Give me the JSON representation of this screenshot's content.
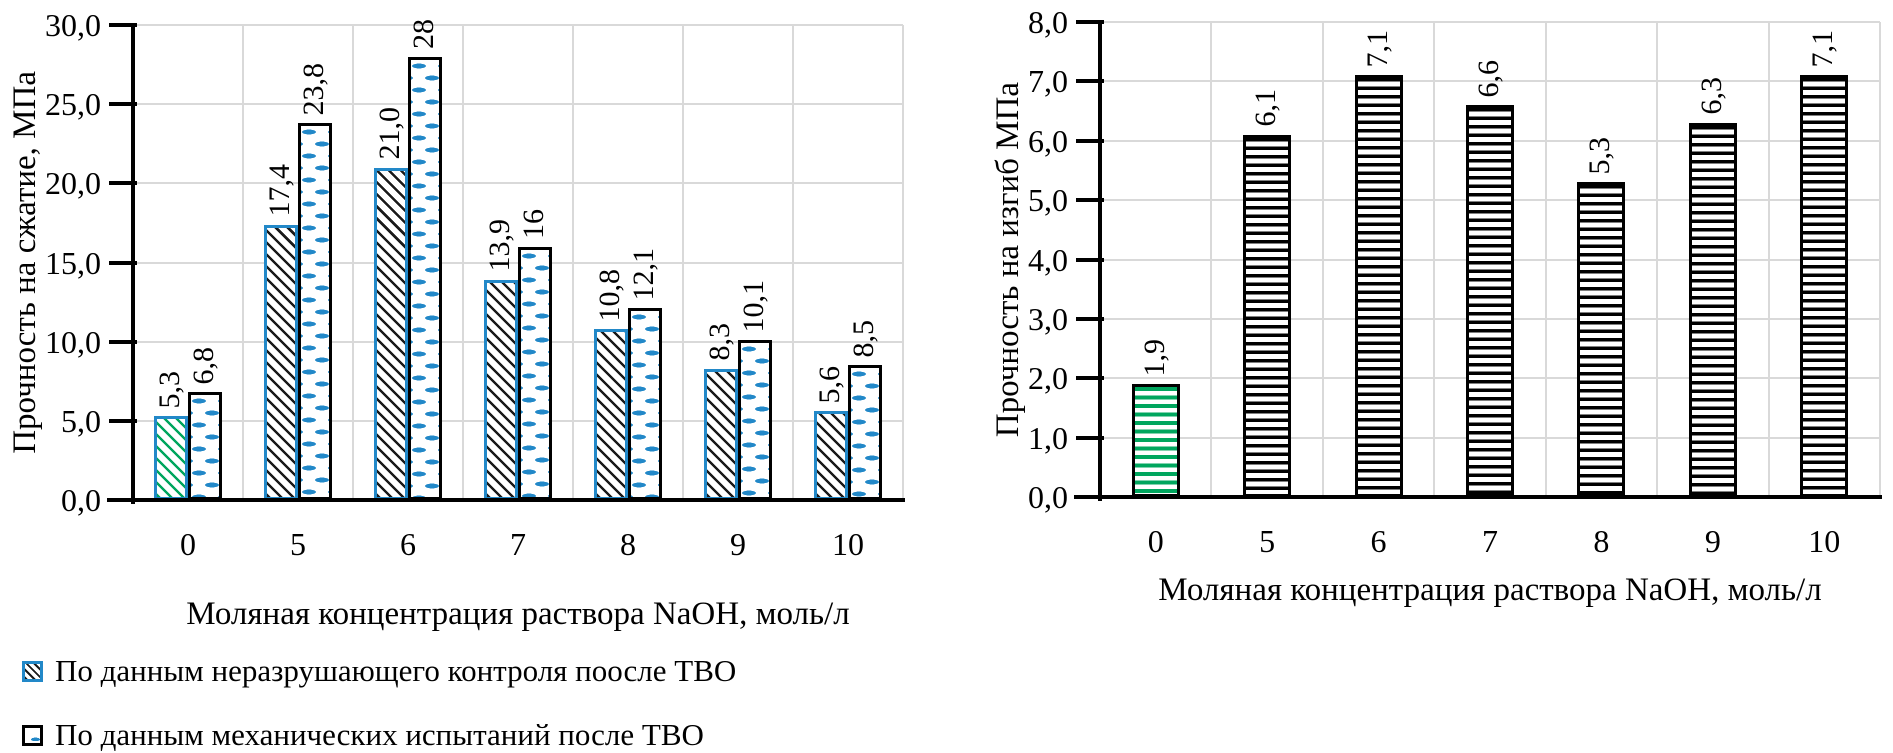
{
  "colors": {
    "accent_blue": "#2288C8",
    "accent_green": "#00A65E",
    "grid_gray": "#D9D9D9",
    "axis_black": "#000000"
  },
  "legend": {
    "items": [
      {
        "label": "По данным неразрушающего контроля поосле ТВО",
        "swatch": "black-hatch-blue-border"
      },
      {
        "label": "По данным механических испытаний после ТВО",
        "swatch": "blue-dash-black-border"
      }
    ]
  },
  "chart_data": [
    {
      "type": "bar",
      "title": "",
      "categories": [
        "0",
        "5",
        "6",
        "7",
        "8",
        "9",
        "10"
      ],
      "series": [
        {
          "name": "По данным неразрушающего контроля поосле ТВО",
          "values": [
            5.3,
            17.4,
            21.0,
            13.9,
            10.8,
            8.3,
            5.6
          ],
          "value_labels": [
            "5,3",
            "17,4",
            "21,0",
            "13,9",
            "10,8",
            "8,3",
            "5,6"
          ],
          "patterns": [
            "hatch-green",
            "hatch-black",
            "hatch-black",
            "hatch-black",
            "hatch-black",
            "hatch-black",
            "hatch-black"
          ],
          "border": "blue"
        },
        {
          "name": "По данным механических испытаний после ТВО",
          "values": [
            6.8,
            23.8,
            28,
            16,
            12.1,
            10.1,
            8.5
          ],
          "value_labels": [
            "6,8",
            "23,8",
            "28",
            "16",
            "12,1",
            "10,1",
            "8,5"
          ],
          "patterns": [
            "blue-dash",
            "blue-dash",
            "blue-dash",
            "blue-dash",
            "blue-dash",
            "blue-dash",
            "blue-dash"
          ],
          "border": "black"
        }
      ],
      "xlabel": "Моляная концентрация раствора NaOH, моль/л",
      "ylabel": "Прочность на сжатие, МПа",
      "ylim": [
        0,
        30
      ],
      "ytick_step": 5,
      "ytick_labels": [
        "30,0",
        "25,0",
        "20,0",
        "15,0",
        "10,0",
        "5,0",
        "0,0"
      ],
      "grid": true,
      "legend_position": "bottom"
    },
    {
      "type": "bar",
      "title": "",
      "categories": [
        "0",
        "5",
        "6",
        "7",
        "8",
        "9",
        "10"
      ],
      "series": [
        {
          "values": [
            1.9,
            6.1,
            7.1,
            6.6,
            5.3,
            6.3,
            7.1
          ],
          "value_labels": [
            "1,9",
            "6,1",
            "7,1",
            "6,6",
            "5,3",
            "6,3",
            "7,1"
          ],
          "patterns": [
            "h-stripes-green",
            "h-stripes-black",
            "h-stripes-black",
            "h-stripes-black",
            "h-stripes-black",
            "h-stripes-black",
            "h-stripes-black"
          ],
          "border": "black"
        }
      ],
      "xlabel": "Моляная концентрация раствора NaOH, моль/л",
      "ylabel": "Прочность на изгиб МПа",
      "ylim": [
        0,
        8
      ],
      "ytick_step": 1,
      "ytick_labels": [
        "8,0",
        "7,0",
        "6,0",
        "5,0",
        "4,0",
        "3,0",
        "2,0",
        "1,0",
        "0,0"
      ],
      "grid": true,
      "legend_position": "none"
    }
  ]
}
